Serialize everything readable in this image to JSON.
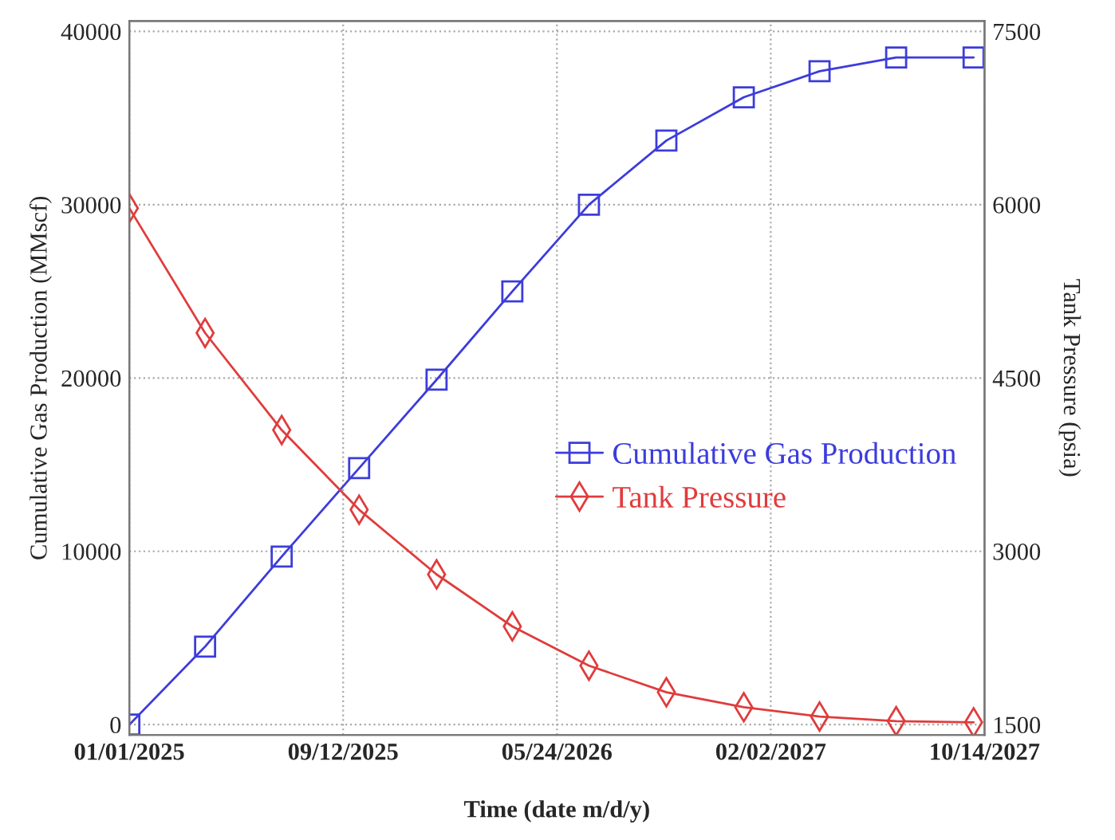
{
  "chart_data": {
    "type": "line",
    "xlabel": "Time (date m/d/y)",
    "ylabel": "Cumulative Gas Production (MMscf)",
    "y2label": "Tank Pressure (psia)",
    "x": [
      "2025-01-01",
      "2025-04-01",
      "2025-07-01",
      "2025-10-01",
      "2026-01-01",
      "2026-04-01",
      "2026-07-01",
      "2026-10-01",
      "2027-01-01",
      "2027-04-01",
      "2027-07-01",
      "2027-10-01"
    ],
    "series": [
      {
        "name": "Cumulative Gas Production",
        "color": "#3c3cdc",
        "marker": "square",
        "values": [
          0,
          4500,
          9700,
          14800,
          19900,
          25000,
          30000,
          33700,
          36200,
          37700,
          38500,
          38500
        ]
      },
      {
        "name": "Tank Pressure",
        "color": "#e03c3c",
        "marker": "diamond",
        "axis": "y2",
        "values": [
          5970,
          4890,
          4050,
          3360,
          2800,
          2350,
          2010,
          1780,
          1650,
          1570,
          1530,
          1520
        ]
      }
    ],
    "xlim": [
      "2025-01-01",
      "2027-10-14"
    ],
    "xticks": [
      {
        "value": "2025-01-01",
        "label": "01/01/2025"
      },
      {
        "value": "2025-09-12",
        "label": "09/12/2025"
      },
      {
        "value": "2026-05-24",
        "label": "05/24/2026"
      },
      {
        "value": "2027-02-02",
        "label": "02/02/2027"
      },
      {
        "value": "2027-10-14",
        "label": "10/14/2027"
      }
    ],
    "ylim": [
      -600,
      40600
    ],
    "yticks": [
      0,
      10000,
      20000,
      30000,
      40000
    ],
    "y2lim": [
      1410,
      7590
    ],
    "y2ticks": [
      1500,
      3000,
      4500,
      6000,
      7500
    ],
    "grid": true,
    "legend": "right",
    "line_style": "solid"
  }
}
